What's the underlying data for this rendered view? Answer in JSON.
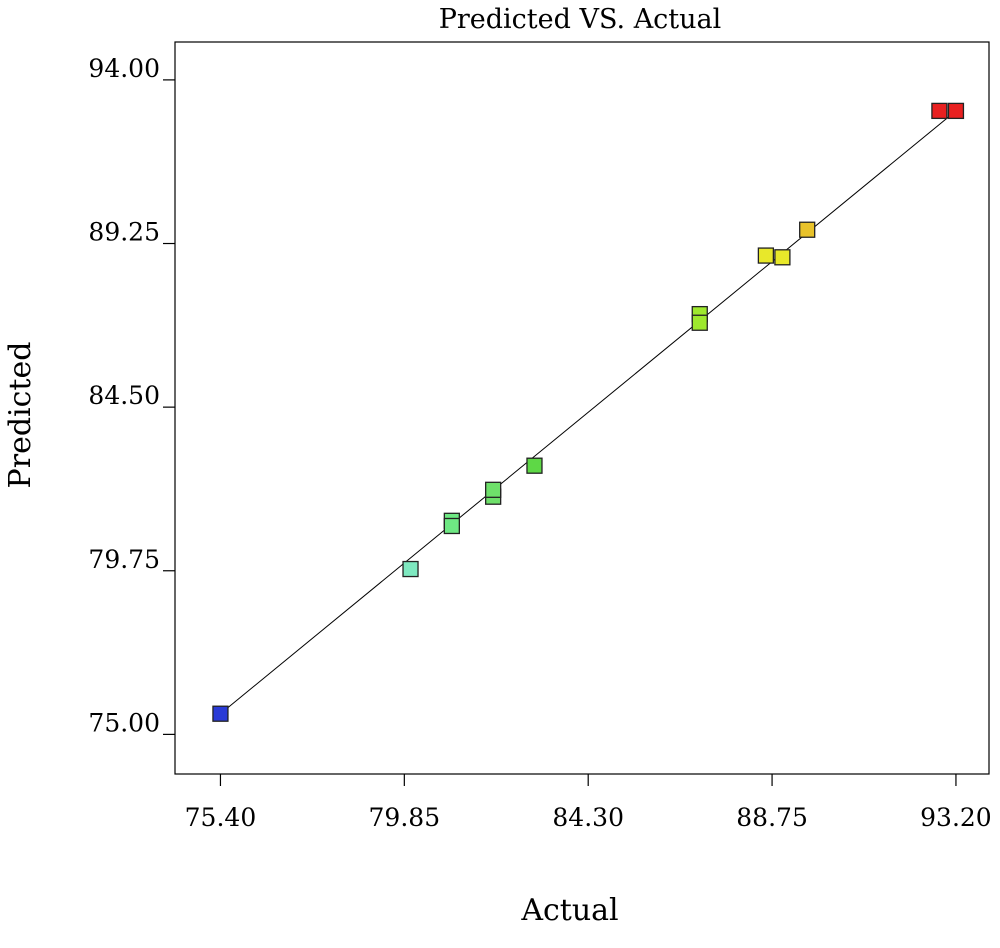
{
  "chart_data": {
    "type": "scatter",
    "title": "Predicted VS. Actual",
    "xlabel": "Actual",
    "ylabel": "Predicted",
    "xlim": [
      74.3,
      94.0
    ],
    "ylim": [
      73.85,
      95.1
    ],
    "x_ticks": [
      "75.40",
      "79.85",
      "84.30",
      "88.75",
      "93.20"
    ],
    "y_ticks": [
      "75.00",
      "79.75",
      "84.50",
      "89.25",
      "94.00"
    ],
    "grid": false,
    "legend": "none",
    "reference_line": {
      "from": [
        75.4,
        75.6
      ],
      "to": [
        93.2,
        93.1
      ]
    },
    "series": [
      {
        "points": [
          {
            "x": 75.4,
            "y": 75.6,
            "color": "#2a3bd6"
          },
          {
            "x": 80.0,
            "y": 79.8,
            "color": "#7ee8c0"
          },
          {
            "x": 81.0,
            "y": 81.2,
            "color": "#6ee883"
          },
          {
            "x": 81.0,
            "y": 81.05,
            "color": "#6ee883"
          },
          {
            "x": 82.0,
            "y": 81.9,
            "color": "#6ee06a"
          },
          {
            "x": 82.0,
            "y": 82.1,
            "color": "#6ee06a"
          },
          {
            "x": 83.0,
            "y": 82.8,
            "color": "#5ed846"
          },
          {
            "x": 87.0,
            "y": 87.2,
            "color": "#9ee82e"
          },
          {
            "x": 87.0,
            "y": 86.95,
            "color": "#9ee82e"
          },
          {
            "x": 88.6,
            "y": 88.9,
            "color": "#e8e82a"
          },
          {
            "x": 89.0,
            "y": 88.85,
            "color": "#e8e82a"
          },
          {
            "x": 89.6,
            "y": 89.65,
            "color": "#e8c22a"
          },
          {
            "x": 92.8,
            "y": 93.1,
            "color": "#e82020"
          },
          {
            "x": 93.2,
            "y": 93.1,
            "color": "#e82020"
          }
        ]
      }
    ]
  }
}
